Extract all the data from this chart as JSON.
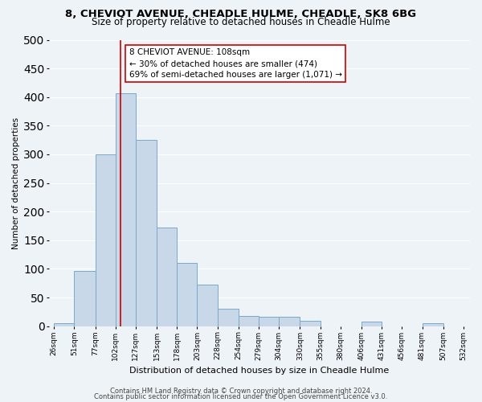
{
  "title": "8, CHEVIOT AVENUE, CHEADLE HULME, CHEADLE, SK8 6BG",
  "subtitle": "Size of property relative to detached houses in Cheadle Hulme",
  "xlabel": "Distribution of detached houses by size in Cheadle Hulme",
  "ylabel": "Number of detached properties",
  "bar_left_edges": [
    26,
    51,
    77,
    102,
    127,
    153,
    178,
    203,
    228,
    254,
    279,
    304,
    330,
    355,
    380,
    406,
    431,
    456,
    481,
    507
  ],
  "bar_widths": [
    25,
    26,
    25,
    25,
    26,
    25,
    25,
    25,
    26,
    25,
    25,
    26,
    25,
    25,
    26,
    25,
    25,
    25,
    26,
    25
  ],
  "bar_heights": [
    5,
    97,
    300,
    407,
    325,
    172,
    110,
    72,
    30,
    18,
    17,
    16,
    10,
    0,
    0,
    8,
    0,
    0,
    5,
    0
  ],
  "tick_labels": [
    "26sqm",
    "51sqm",
    "77sqm",
    "102sqm",
    "127sqm",
    "153sqm",
    "178sqm",
    "203sqm",
    "228sqm",
    "254sqm",
    "279sqm",
    "304sqm",
    "330sqm",
    "355sqm",
    "380sqm",
    "406sqm",
    "431sqm",
    "456sqm",
    "481sqm",
    "507sqm",
    "532sqm"
  ],
  "tick_positions": [
    26,
    51,
    77,
    102,
    127,
    153,
    178,
    203,
    228,
    254,
    279,
    304,
    330,
    355,
    380,
    406,
    431,
    456,
    481,
    507,
    532
  ],
  "bar_color": "#c8d8e8",
  "bar_edge_color": "#7aaac8",
  "vline_x": 108,
  "vline_color": "#cc0000",
  "ylim": [
    0,
    500
  ],
  "xlim": [
    20,
    540
  ],
  "annotation_title": "8 CHEVIOT AVENUE: 108sqm",
  "annotation_line1": "← 30% of detached houses are smaller (474)",
  "annotation_line2": "69% of semi-detached houses are larger (1,071) →",
  "annotation_box_color": "#ffffff",
  "annotation_box_edge_color": "#cc0000",
  "footer_line1": "Contains HM Land Registry data © Crown copyright and database right 2024.",
  "footer_line2": "Contains public sector information licensed under the Open Government Licence v3.0.",
  "bg_color": "#eef3f8",
  "grid_color": "#ffffff",
  "title_fontsize": 9.5,
  "subtitle_fontsize": 8.5,
  "ylabel_fontsize": 7.5,
  "xlabel_fontsize": 8,
  "tick_fontsize": 6.5,
  "annotation_fontsize": 7.5,
  "footer_fontsize": 6
}
